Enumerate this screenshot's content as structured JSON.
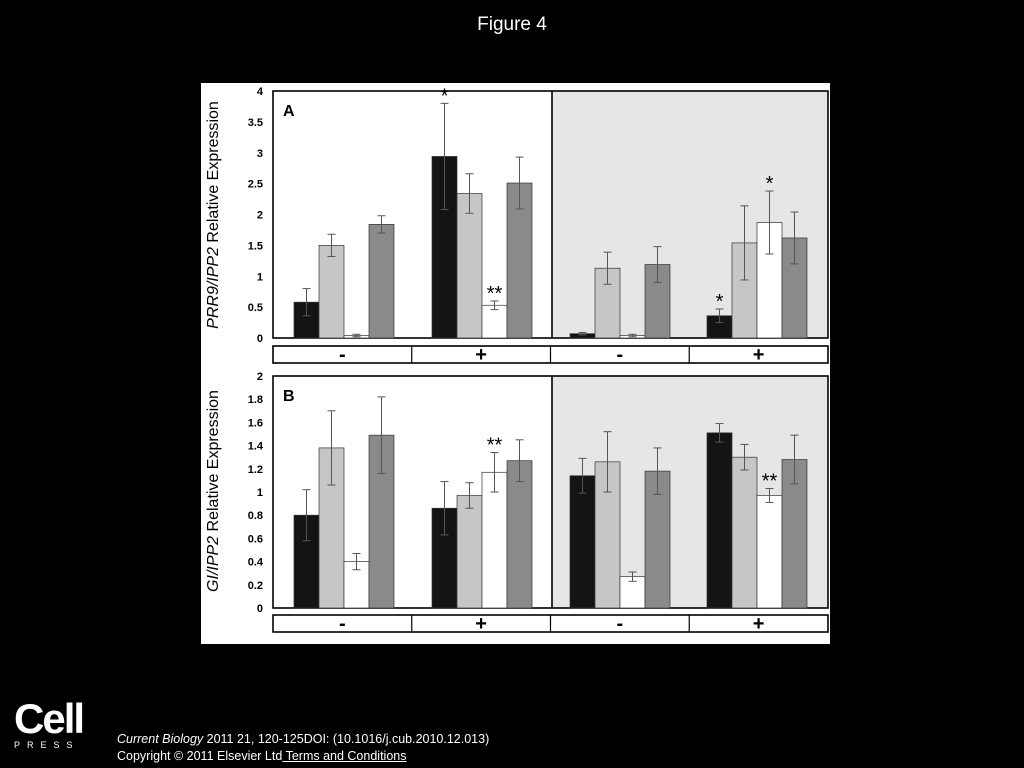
{
  "figure_title": "Figure 4",
  "colors": {
    "black": "#141414",
    "light_gray": "#c6c6c6",
    "white": "#ffffff",
    "dark_gray": "#8a8a8a",
    "shaded_bg": "#e6e6e6"
  },
  "chart_data": [
    {
      "type": "bar",
      "panel_label": "A",
      "ylabel_parts": [
        "PRR9/IPP2",
        " Relative Expression"
      ],
      "ylim": [
        0,
        4
      ],
      "yticks": [
        "0",
        "0.5",
        "1",
        "1.5",
        "2",
        "2.5",
        "3",
        "3.5",
        "4"
      ],
      "group_labels": [
        "-",
        "+",
        "-",
        "+"
      ],
      "shaded_groups": [
        2,
        3
      ],
      "groups": [
        {
          "values": [
            0.58,
            1.5,
            0.04,
            1.84
          ],
          "errors": [
            0.22,
            0.18,
            0.02,
            0.14
          ],
          "asterisks": [
            "",
            "",
            "",
            ""
          ]
        },
        {
          "values": [
            2.94,
            2.34,
            0.53,
            2.51
          ],
          "errors": [
            0.86,
            0.32,
            0.07,
            0.42
          ],
          "asterisks": [
            "*",
            "",
            "**",
            ""
          ]
        },
        {
          "values": [
            0.07,
            1.13,
            0.04,
            1.19
          ],
          "errors": [
            0.02,
            0.26,
            0.02,
            0.29
          ],
          "asterisks": [
            "",
            "",
            "",
            ""
          ]
        },
        {
          "values": [
            0.36,
            1.54,
            1.87,
            1.62
          ],
          "errors": [
            0.11,
            0.6,
            0.51,
            0.42
          ],
          "asterisks": [
            "*",
            "",
            "*",
            ""
          ]
        }
      ]
    },
    {
      "type": "bar",
      "panel_label": "B",
      "ylabel_parts": [
        "GI/IPP2",
        " Relative Expression"
      ],
      "ylim": [
        0,
        2
      ],
      "yticks": [
        "0",
        "0.2",
        "0.4",
        "0.6",
        "0.8",
        "1",
        "1.2",
        "1.4",
        "1.6",
        "1.8",
        "2"
      ],
      "group_labels": [
        "-",
        "+",
        "-",
        "+"
      ],
      "shaded_groups": [
        2,
        3
      ],
      "groups": [
        {
          "values": [
            0.8,
            1.38,
            0.4,
            1.49
          ],
          "errors": [
            0.22,
            0.32,
            0.07,
            0.33
          ],
          "asterisks": [
            "",
            "",
            "",
            ""
          ]
        },
        {
          "values": [
            0.86,
            0.97,
            1.17,
            1.27
          ],
          "errors": [
            0.23,
            0.11,
            0.17,
            0.18
          ],
          "asterisks": [
            "",
            "",
            "**",
            ""
          ]
        },
        {
          "values": [
            1.14,
            1.26,
            0.27,
            1.18
          ],
          "errors": [
            0.15,
            0.26,
            0.04,
            0.2
          ],
          "asterisks": [
            "",
            "",
            "",
            ""
          ]
        },
        {
          "values": [
            1.51,
            1.3,
            0.97,
            1.28
          ],
          "errors": [
            0.08,
            0.11,
            0.06,
            0.21
          ],
          "asterisks": [
            "",
            "",
            "**",
            ""
          ]
        }
      ]
    }
  ],
  "logo": {
    "word": "Cell",
    "sub": "PRESS"
  },
  "citation": {
    "journal": "Current Biology",
    "rest": " 2011 21, 120-125DOI: (10.1016/j.cub.2010.12.013)",
    "copyright": "Copyright © 2011 Elsevier Ltd",
    "link": " Terms and Conditions"
  }
}
